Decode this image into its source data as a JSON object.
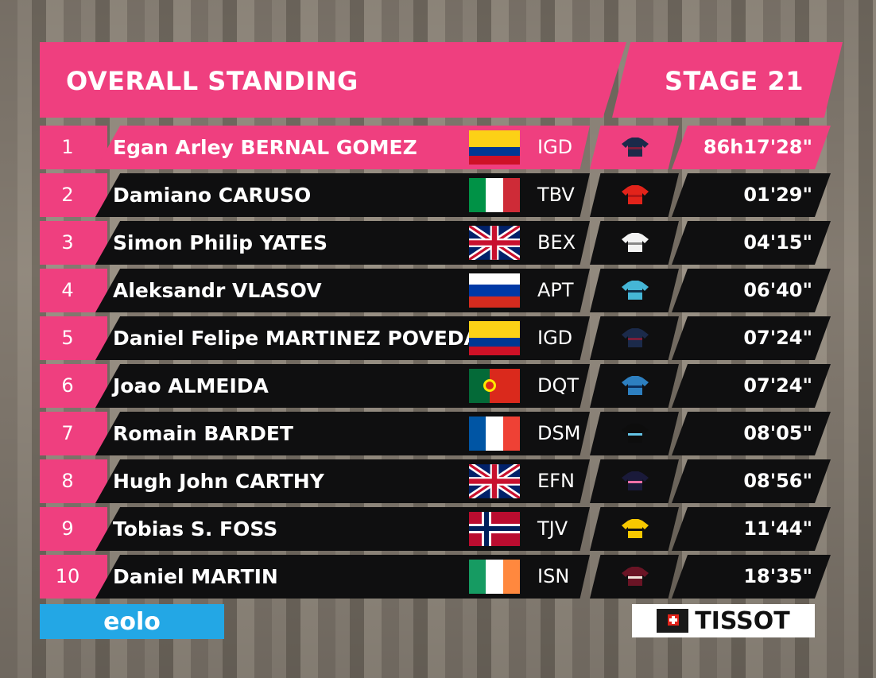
{
  "header": {
    "title": "OVERALL STANDING",
    "stage": "STAGE 21"
  },
  "rows": [
    {
      "rank": "1",
      "name": "Egan Arley BERNAL GOMEZ",
      "team": "IGD",
      "flag": "colombia-flag",
      "jersey": "ineos-jersey-icon",
      "time": "86h17'28\""
    },
    {
      "rank": "2",
      "name": "Damiano CARUSO",
      "team": "TBV",
      "flag": "italy-flag",
      "jersey": "bahrain-jersey-icon",
      "time": "01'29\""
    },
    {
      "rank": "3",
      "name": "Simon Philip YATES",
      "team": "BEX",
      "flag": "united-kingdom-flag",
      "jersey": "bikeexchange-jersey-icon",
      "time": "04'15\""
    },
    {
      "rank": "4",
      "name": "Aleksandr VLASOV",
      "team": "APT",
      "flag": "russia-flag",
      "jersey": "astana-jersey-icon",
      "time": "06'40\""
    },
    {
      "rank": "5",
      "name": "Daniel Felipe MARTINEZ POVEDA",
      "team": "IGD",
      "flag": "colombia-flag",
      "jersey": "ineos-jersey-icon",
      "time": "07'24\""
    },
    {
      "rank": "6",
      "name": "Joao ALMEIDA",
      "team": "DQT",
      "flag": "portugal-flag",
      "jersey": "deceuninck-jersey-icon",
      "time": "07'24\""
    },
    {
      "rank": "7",
      "name": "Romain BARDET",
      "team": "DSM",
      "flag": "france-flag",
      "jersey": "dsm-jersey-icon",
      "time": "08'05\""
    },
    {
      "rank": "8",
      "name": "Hugh John CARTHY",
      "team": "EFN",
      "flag": "united-kingdom-flag",
      "jersey": "ef-jersey-icon",
      "time": "08'56\""
    },
    {
      "rank": "9",
      "name": "Tobias S. FOSS",
      "team": "TJV",
      "flag": "norway-flag",
      "jersey": "jumbo-visma-jersey-icon",
      "time": "11'44\""
    },
    {
      "rank": "10",
      "name": "Daniel MARTIN",
      "team": "ISN",
      "flag": "ireland-flag",
      "jersey": "israel-jersey-icon",
      "time": "18'35\""
    }
  ],
  "sponsors": {
    "left": "eolo",
    "right": "TISSOT"
  },
  "colors": {
    "accent": "#ef3f7f",
    "band": "#0f0f10",
    "eolo": "#23a7e5"
  }
}
